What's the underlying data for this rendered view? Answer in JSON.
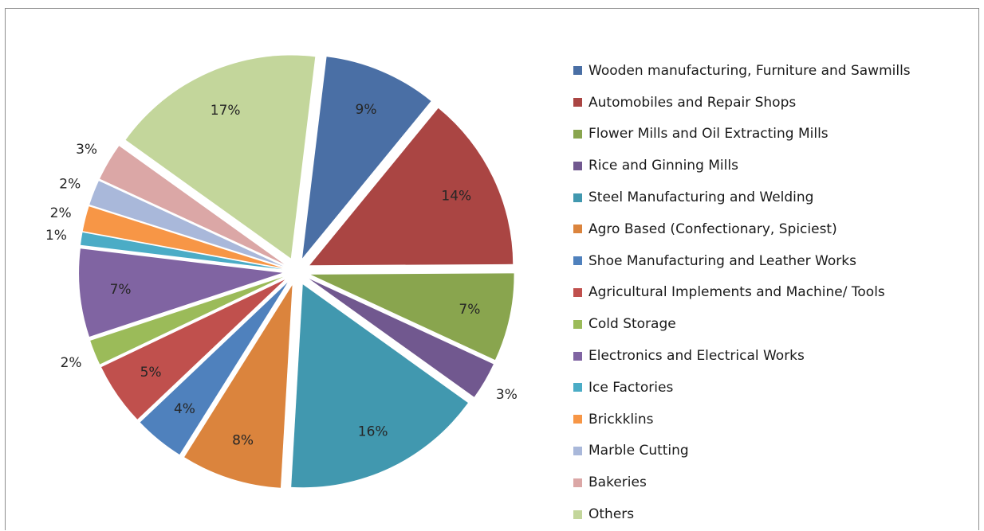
{
  "chart_data": {
    "type": "pie",
    "title": "",
    "exploded": true,
    "legend_position": "right",
    "slices": [
      {
        "name": "Wooden manufacturing, Furniture and Sawmills",
        "value": 9,
        "label": "9%",
        "color": "#4a6fa5"
      },
      {
        "name": "Automobiles and Repair Shops",
        "value": 14,
        "label": "14%",
        "color": "#aa4543"
      },
      {
        "name": "Flower Mills and Oil Extracting  Mills",
        "value": 7,
        "label": "7%",
        "color": "#89a54e"
      },
      {
        "name": "Rice and Ginning Mills",
        "value": 3,
        "label": "3%",
        "color": "#71588f"
      },
      {
        "name": "Steel Manufacturing and Welding",
        "value": 16,
        "label": "16%",
        "color": "#4198af"
      },
      {
        "name": "Agro Based (Confectionary, Spiciest)",
        "value": 8,
        "label": "8%",
        "color": "#db843d"
      },
      {
        "name": "Shoe Manufacturing and Leather Works",
        "value": 4,
        "label": "4%",
        "color": "#4f81bd"
      },
      {
        "name": "Agricultural Implements and Machine/ Tools",
        "value": 5,
        "label": "5%",
        "color": "#c0504d"
      },
      {
        "name": "Cold Storage",
        "value": 2,
        "label": "2%",
        "color": "#9bbb59"
      },
      {
        "name": "Electronics and Electrical Works",
        "value": 7,
        "label": "7%",
        "color": "#8064a2"
      },
      {
        "name": "Ice Factories",
        "value": 1,
        "label": "1%",
        "color": "#4bacc6"
      },
      {
        "name": "Brickklins",
        "value": 2,
        "label": "2%",
        "color": "#f79646"
      },
      {
        "name": "Marble Cutting",
        "value": 2,
        "label": "2%",
        "color": "#a9b8da"
      },
      {
        "name": "Bakeries",
        "value": 3,
        "label": "3%",
        "color": "#dba7a6"
      },
      {
        "name": "Others",
        "value": 17,
        "label": "17%",
        "color": "#c3d69b"
      }
    ]
  }
}
